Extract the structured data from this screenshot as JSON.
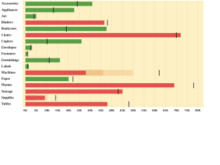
{
  "chart_data": {
    "type": "bullet",
    "categories": [
      "Accessories",
      "Appliances",
      "Art",
      "Binders",
      "Bookcases",
      "Chairs",
      "Copiers",
      "Envelopes",
      "Fasteners",
      "Furnishings",
      "Labels",
      "Machines",
      "Paper",
      "Phones",
      "Storage",
      "Supplies",
      "Tables"
    ],
    "values": [
      31,
      22.6,
      5,
      36.6,
      37.6,
      72,
      26,
      3,
      1,
      16,
      1.6,
      28,
      20,
      69,
      45,
      9,
      38
    ],
    "targets": [
      24,
      13,
      4,
      38,
      19,
      70,
      10,
      2.5,
      1,
      11,
      1,
      62,
      22,
      78,
      43,
      14,
      48
    ],
    "colors": [
      "#5a9e47",
      "#5a9e47",
      "#5a9e47",
      "#e0514f",
      "#5a9e47",
      "#e0514f",
      "#5a9e47",
      "#5a9e47",
      "#5a9e47",
      "#5a9e47",
      "#5a9e47",
      "#e0514f",
      "#5a9e47",
      "#e0514f",
      "#e0514f",
      "#e0514f",
      "#e0514f"
    ],
    "bands_inner": [
      null,
      null,
      null,
      null,
      null,
      null,
      null,
      null,
      null,
      null,
      null,
      36,
      null,
      null,
      null,
      5,
      null
    ],
    "bands_outer": [
      null,
      null,
      null,
      null,
      null,
      null,
      null,
      null,
      null,
      null,
      null,
      50,
      null,
      null,
      null,
      10,
      null
    ],
    "band_colors": [
      "#f2c48a",
      "#f8d9a6"
    ],
    "target_color": "#111111",
    "background": "#fdf0c4",
    "xlim": [
      0,
      80
    ],
    "xticks": [
      {
        "value": 0,
        "label": "0K"
      },
      {
        "value": 5,
        "label": "5K"
      },
      {
        "value": 10,
        "label": "10K"
      },
      {
        "value": 15,
        "label": "15K"
      },
      {
        "value": 20,
        "label": "20K"
      },
      {
        "value": 25,
        "label": "25K"
      },
      {
        "value": 30,
        "label": "30K"
      },
      {
        "value": 35,
        "label": "35K"
      },
      {
        "value": 40,
        "label": "40K"
      },
      {
        "value": 45,
        "label": "45K"
      },
      {
        "value": 50,
        "label": "50K"
      },
      {
        "value": 55,
        "label": "55K"
      },
      {
        "value": 60,
        "label": "60K"
      },
      {
        "value": 65,
        "label": "65K"
      },
      {
        "value": 70,
        "label": "70K"
      },
      {
        "value": 75,
        "label": "75K"
      },
      {
        "value": 80,
        "label": "80K"
      }
    ],
    "grid": true
  }
}
